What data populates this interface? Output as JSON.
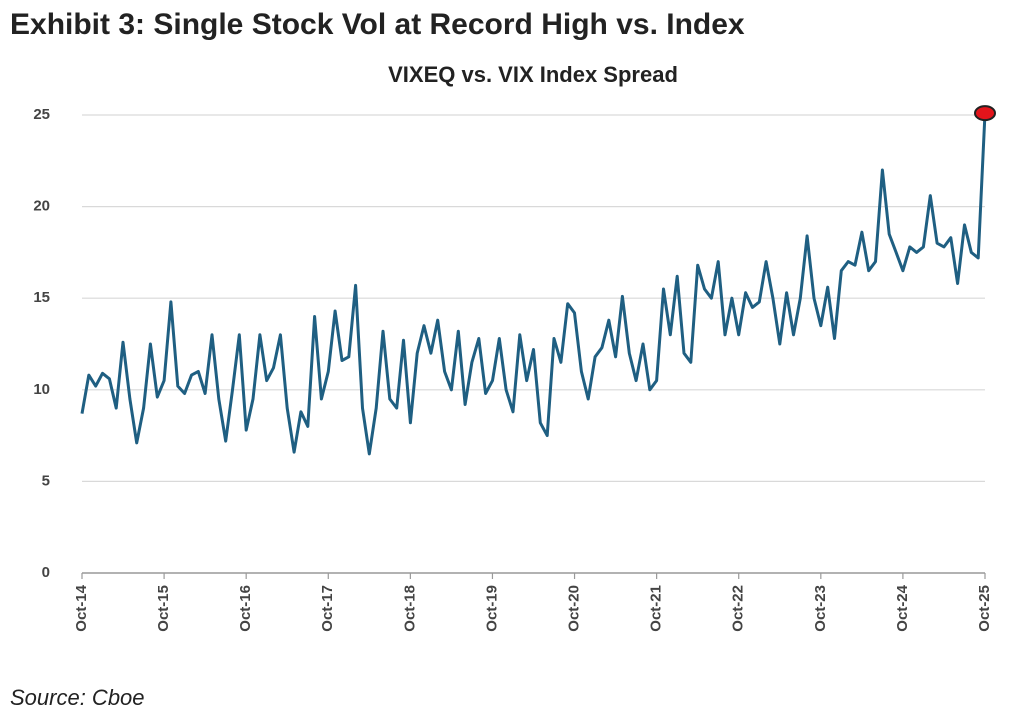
{
  "chart_data": {
    "type": "line",
    "title": "Exhibit 3: Single Stock Vol at Record High vs. Index",
    "subtitle": "VIXEQ vs. VIX Index Spread",
    "source": "Source: Cboe",
    "categories": [
      "Oct-14",
      null,
      null,
      null,
      null,
      null,
      null,
      null,
      null,
      null,
      null,
      null,
      "Oct-15",
      null,
      null,
      null,
      null,
      null,
      null,
      null,
      null,
      null,
      null,
      null,
      "Oct-16",
      null,
      null,
      null,
      null,
      null,
      null,
      null,
      null,
      null,
      null,
      null,
      "Oct-17",
      null,
      null,
      null,
      null,
      null,
      null,
      null,
      null,
      null,
      null,
      null,
      "Oct-18",
      null,
      null,
      null,
      null,
      null,
      null,
      null,
      null,
      null,
      null,
      null,
      "Oct-19",
      null,
      null,
      null,
      null,
      null,
      null,
      null,
      null,
      null,
      null,
      null,
      "Oct-20",
      null,
      null,
      null,
      null,
      null,
      null,
      null,
      null,
      null,
      null,
      null,
      "Oct-21",
      null,
      null,
      null,
      null,
      null,
      null,
      null,
      null,
      null,
      null,
      null,
      "Oct-22",
      null,
      null,
      null,
      null,
      null,
      null,
      null,
      null,
      null,
      null,
      null,
      "Oct-23",
      null,
      null,
      null,
      null,
      null,
      null,
      null,
      null,
      null,
      null,
      null,
      "Oct-24",
      null,
      null,
      null,
      null,
      null,
      null,
      null,
      null,
      null,
      null,
      null,
      "Oct-25"
    ],
    "series": [
      {
        "name": "VIXEQ vs. VIX Index Spread",
        "color": "#1f5f82",
        "values": [
          8.7,
          10.8,
          10.2,
          10.9,
          10.6,
          9,
          12.6,
          9.5,
          7.1,
          9,
          12.5,
          9.6,
          10.5,
          14.8,
          10.2,
          9.8,
          10.8,
          11,
          9.8,
          13,
          9.5,
          7.2,
          10,
          13,
          7.8,
          9.5,
          13,
          10.5,
          11.2,
          13,
          9,
          6.6,
          8.8,
          8,
          14,
          9.5,
          11,
          14.3,
          11.6,
          11.8,
          15.7,
          9,
          6.5,
          9,
          13.2,
          9.5,
          9,
          12.7,
          8.2,
          12,
          13.5,
          12,
          13.8,
          11,
          10,
          13.2,
          9.2,
          11.5,
          12.8,
          9.8,
          10.5,
          12.8,
          10,
          8.8,
          13,
          10.5,
          12.2,
          8.2,
          7.5,
          12.8,
          11.5,
          14.7,
          14.2,
          11,
          9.5,
          11.8,
          12.3,
          13.8,
          11.8,
          15.1,
          12,
          10.5,
          12.5,
          10,
          10.5,
          15.5,
          13,
          16.2,
          12,
          11.5,
          16.8,
          15.5,
          15,
          17,
          13,
          15,
          13,
          15.3,
          14.5,
          14.8,
          17,
          15,
          12.5,
          15.3,
          13,
          15,
          18.4,
          15,
          13.5,
          15.6,
          12.8,
          16.5,
          17,
          16.8,
          18.6,
          16.5,
          17,
          22,
          18.5,
          17.5,
          16.5,
          17.8,
          17.5,
          17.8,
          20.6,
          18,
          17.8,
          18.3,
          15.8,
          19,
          17.5,
          17.2,
          25.1
        ]
      }
    ],
    "marker_color": "#e3141b",
    "ylim": [
      0,
      25
    ],
    "yticks": [
      0,
      5,
      10,
      15,
      20,
      25
    ],
    "grid": true
  }
}
